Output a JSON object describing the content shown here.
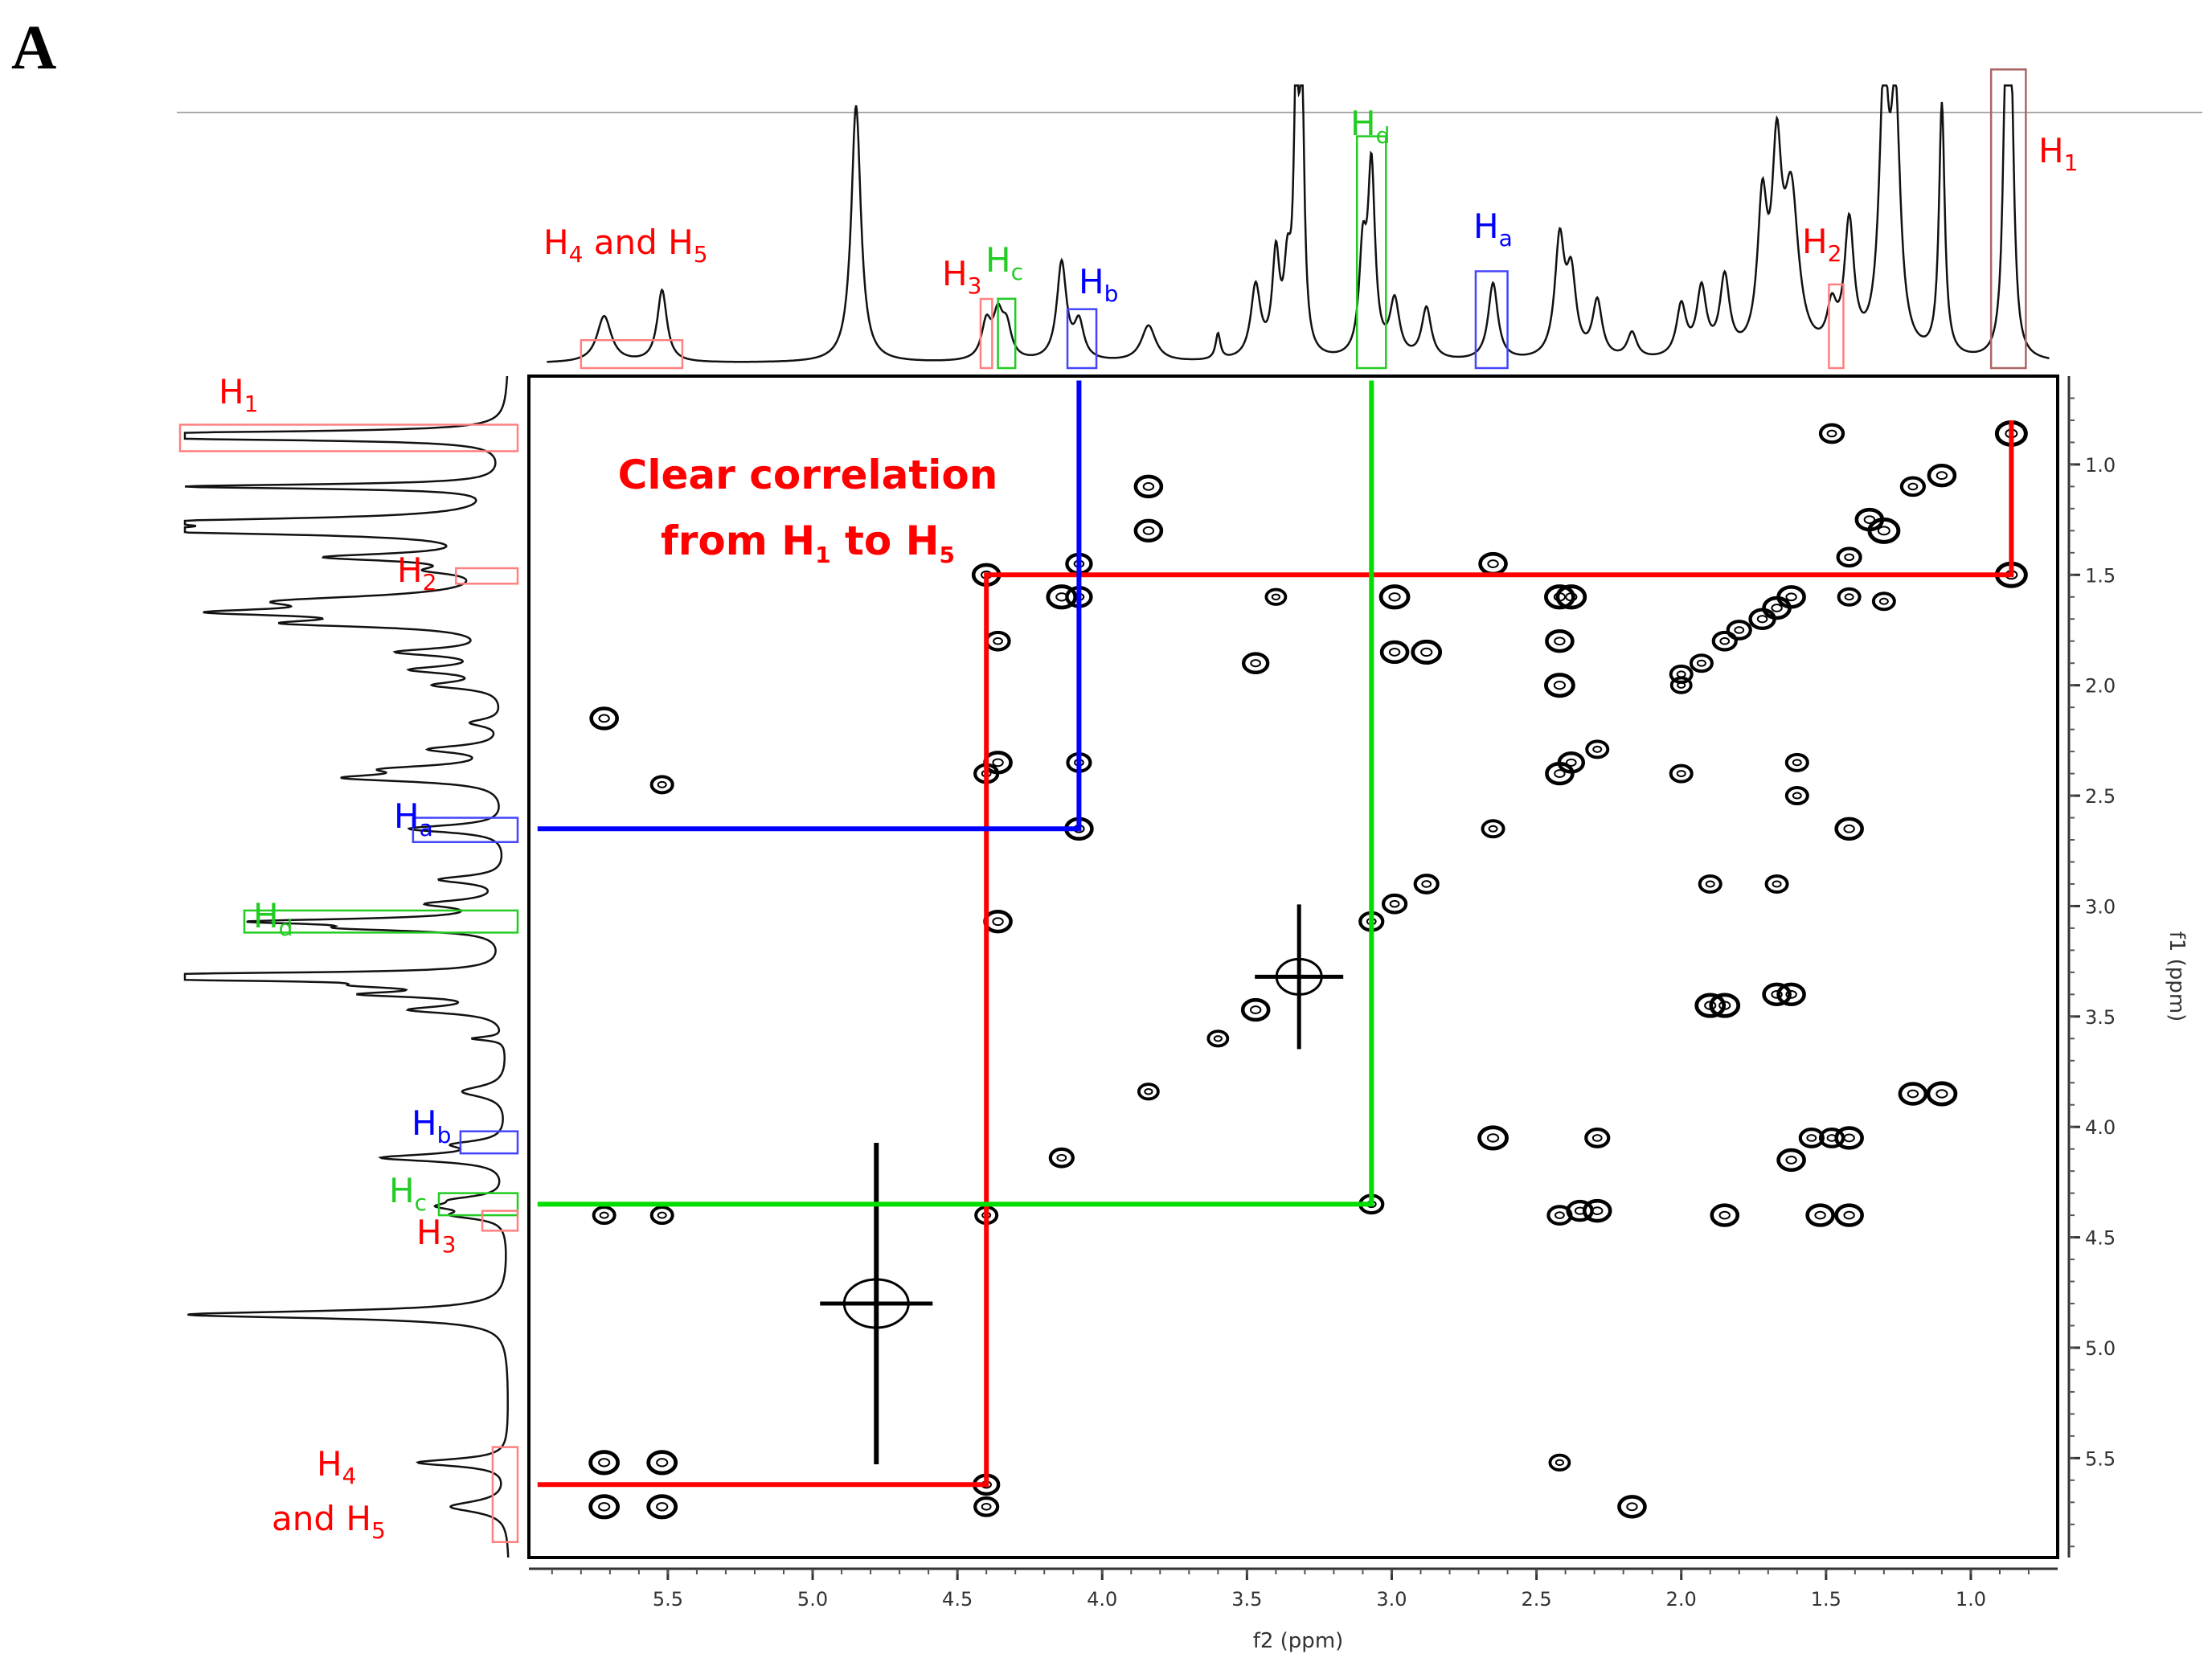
{
  "panel_label": "A",
  "chart_data": {
    "type": "2D-NMR-COSY",
    "xlabel": "f2 (ppm)",
    "ylabel": "f1 (ppm)",
    "xlim": [
      5.98,
      0.7
    ],
    "ylim": [
      0.6,
      5.95
    ],
    "x_ticks": [
      {
        "value": 5.5,
        "label": "5.5"
      },
      {
        "value": 5.0,
        "label": "5.0"
      },
      {
        "value": 4.5,
        "label": "4.5"
      },
      {
        "value": 4.0,
        "label": "4.0"
      },
      {
        "value": 3.5,
        "label": "3.5"
      },
      {
        "value": 3.0,
        "label": "3.0"
      },
      {
        "value": 2.5,
        "label": "2.5"
      },
      {
        "value": 2.0,
        "label": "2.0"
      },
      {
        "value": 1.5,
        "label": "1.5"
      },
      {
        "value": 1.0,
        "label": "1.0"
      }
    ],
    "y_ticks": [
      {
        "value": 1.0,
        "label": "1.0"
      },
      {
        "value": 1.5,
        "label": "1.5"
      },
      {
        "value": 2.0,
        "label": "2.0"
      },
      {
        "value": 2.5,
        "label": "2.5"
      },
      {
        "value": 3.0,
        "label": "3.0"
      },
      {
        "value": 3.5,
        "label": "3.5"
      },
      {
        "value": 4.0,
        "label": "4.0"
      },
      {
        "value": 4.5,
        "label": "4.5"
      },
      {
        "value": 5.0,
        "label": "5.0"
      },
      {
        "value": 5.5,
        "label": "5.5"
      }
    ],
    "projection_peaks": [
      {
        "ppm": 5.72,
        "h": 0.18,
        "w": 0.03
      },
      {
        "ppm": 5.52,
        "h": 0.28,
        "w": 0.02
      },
      {
        "ppm": 4.85,
        "h": 1.0,
        "w": 0.02
      },
      {
        "ppm": 4.4,
        "h": 0.14,
        "w": 0.02
      },
      {
        "ppm": 4.36,
        "h": 0.16,
        "w": 0.02
      },
      {
        "ppm": 4.33,
        "h": 0.12,
        "w": 0.02
      },
      {
        "ppm": 4.14,
        "h": 0.38,
        "w": 0.02
      },
      {
        "ppm": 4.08,
        "h": 0.14,
        "w": 0.02
      },
      {
        "ppm": 3.84,
        "h": 0.14,
        "w": 0.03
      },
      {
        "ppm": 3.6,
        "h": 0.1,
        "w": 0.01
      },
      {
        "ppm": 3.47,
        "h": 0.28,
        "w": 0.02
      },
      {
        "ppm": 3.4,
        "h": 0.38,
        "w": 0.015
      },
      {
        "ppm": 3.36,
        "h": 0.3,
        "w": 0.015
      },
      {
        "ppm": 3.33,
        "h": 0.98,
        "w": 0.01
      },
      {
        "ppm": 3.31,
        "h": 0.98,
        "w": 0.01
      },
      {
        "ppm": 3.1,
        "h": 0.38,
        "w": 0.015
      },
      {
        "ppm": 3.07,
        "h": 0.72,
        "w": 0.015
      },
      {
        "ppm": 2.99,
        "h": 0.22,
        "w": 0.02
      },
      {
        "ppm": 2.88,
        "h": 0.2,
        "w": 0.02
      },
      {
        "ppm": 2.65,
        "h": 0.3,
        "w": 0.02
      },
      {
        "ppm": 2.42,
        "h": 0.45,
        "w": 0.02
      },
      {
        "ppm": 2.38,
        "h": 0.3,
        "w": 0.02
      },
      {
        "ppm": 2.29,
        "h": 0.22,
        "w": 0.02
      },
      {
        "ppm": 2.17,
        "h": 0.1,
        "w": 0.02
      },
      {
        "ppm": 2.0,
        "h": 0.2,
        "w": 0.02
      },
      {
        "ppm": 1.93,
        "h": 0.26,
        "w": 0.02
      },
      {
        "ppm": 1.85,
        "h": 0.3,
        "w": 0.02
      },
      {
        "ppm": 1.72,
        "h": 0.55,
        "w": 0.02
      },
      {
        "ppm": 1.67,
        "h": 0.7,
        "w": 0.02
      },
      {
        "ppm": 1.62,
        "h": 0.6,
        "w": 0.03
      },
      {
        "ppm": 1.48,
        "h": 0.16,
        "w": 0.02
      },
      {
        "ppm": 1.42,
        "h": 0.5,
        "w": 0.02
      },
      {
        "ppm": 1.3,
        "h": 1.0,
        "w": 0.02
      },
      {
        "ppm": 1.26,
        "h": 0.9,
        "w": 0.02
      },
      {
        "ppm": 1.1,
        "h": 0.98,
        "w": 0.012
      },
      {
        "ppm": 0.88,
        "h": 0.95,
        "w": 0.012
      },
      {
        "ppm": 0.86,
        "h": 0.92,
        "w": 0.012
      }
    ],
    "cross_peaks": [
      [
        0.86,
        0.86,
        1
      ],
      [
        1.1,
        1.05,
        0.8
      ],
      [
        1.2,
        1.1,
        0.6
      ],
      [
        1.3,
        1.3,
        1
      ],
      [
        1.35,
        1.25,
        0.8
      ],
      [
        1.42,
        1.42,
        0.6
      ],
      [
        1.48,
        0.86,
        0.6
      ],
      [
        0.86,
        1.5,
        1
      ],
      [
        1.62,
        1.6,
        0.8
      ],
      [
        1.67,
        1.65,
        0.8
      ],
      [
        1.72,
        1.7,
        0.7
      ],
      [
        1.8,
        1.75,
        0.6
      ],
      [
        1.85,
        1.8,
        0.6
      ],
      [
        1.93,
        1.9,
        0.5
      ],
      [
        2.0,
        1.95,
        0.5
      ],
      [
        1.3,
        1.62,
        0.5
      ],
      [
        1.42,
        1.6,
        0.5
      ],
      [
        2.42,
        1.6,
        0.9
      ],
      [
        2.38,
        1.6,
        0.9
      ],
      [
        2.42,
        1.8,
        0.8
      ],
      [
        2.42,
        2.0,
        0.9
      ],
      [
        2.42,
        2.4,
        0.8
      ],
      [
        2.38,
        2.35,
        0.7
      ],
      [
        2.29,
        2.29,
        0.5
      ],
      [
        2.65,
        1.45,
        0.8
      ],
      [
        2.65,
        2.65,
        0.5
      ],
      [
        2.65,
        4.05,
        0.9
      ],
      [
        1.42,
        2.65,
        0.8
      ],
      [
        1.42,
        4.05,
        0.8
      ],
      [
        1.42,
        4.4,
        0.8
      ],
      [
        1.52,
        4.4,
        0.8
      ],
      [
        1.67,
        2.9,
        0.5
      ],
      [
        1.67,
        3.4,
        0.8
      ],
      [
        1.62,
        3.4,
        0.8
      ],
      [
        1.62,
        4.15,
        0.8
      ],
      [
        1.55,
        4.05,
        0.6
      ],
      [
        1.48,
        4.05,
        0.6
      ],
      [
        1.1,
        3.85,
        0.9
      ],
      [
        1.2,
        3.85,
        0.8
      ],
      [
        1.85,
        3.45,
        0.9
      ],
      [
        1.9,
        3.45,
        0.9
      ],
      [
        1.85,
        4.4,
        0.8
      ],
      [
        1.9,
        2.9,
        0.5
      ],
      [
        2.0,
        2.4,
        0.5
      ],
      [
        2.0,
        2.0,
        0.4
      ],
      [
        1.6,
        2.35,
        0.5
      ],
      [
        1.6,
        2.5,
        0.5
      ],
      [
        2.29,
        4.05,
        0.6
      ],
      [
        2.29,
        4.38,
        0.8
      ],
      [
        2.35,
        4.38,
        0.7
      ],
      [
        2.42,
        4.4,
        0.6
      ],
      [
        2.17,
        5.72,
        0.8
      ],
      [
        2.42,
        5.52,
        0.4
      ],
      [
        2.99,
        1.6,
        0.9
      ],
      [
        2.88,
        1.85,
        0.9
      ],
      [
        2.99,
        1.85,
        0.8
      ],
      [
        2.88,
        2.9,
        0.6
      ],
      [
        2.99,
        2.99,
        0.6
      ],
      [
        3.07,
        3.07,
        0.6
      ],
      [
        3.07,
        4.35,
        0.6
      ],
      [
        3.4,
        1.6,
        0.4
      ],
      [
        3.47,
        1.9,
        0.7
      ],
      [
        3.47,
        3.47,
        0.8
      ],
      [
        3.6,
        3.6,
        0.4
      ],
      [
        3.84,
        1.1,
        0.8
      ],
      [
        3.84,
        1.3,
        0.8
      ],
      [
        3.84,
        3.84,
        0.4
      ],
      [
        4.14,
        1.6,
        0.9
      ],
      [
        4.08,
        1.6,
        0.7
      ],
      [
        4.08,
        1.45,
        0.7
      ],
      [
        4.08,
        2.35,
        0.6
      ],
      [
        4.08,
        2.65,
        0.8
      ],
      [
        4.14,
        4.14,
        0.6
      ],
      [
        4.4,
        1.5,
        0.8
      ],
      [
        4.36,
        1.8,
        0.6
      ],
      [
        4.36,
        2.35,
        0.8
      ],
      [
        4.4,
        2.4,
        0.6
      ],
      [
        4.36,
        3.07,
        0.8
      ],
      [
        4.4,
        4.4,
        0.5
      ],
      [
        4.4,
        5.62,
        0.7
      ],
      [
        4.4,
        5.72,
        0.6
      ],
      [
        5.72,
        2.15,
        0.8
      ],
      [
        5.52,
        2.45,
        0.5
      ],
      [
        5.72,
        4.4,
        0.5
      ],
      [
        5.52,
        4.4,
        0.5
      ],
      [
        5.72,
        5.52,
        0.9
      ],
      [
        5.52,
        5.52,
        0.9
      ],
      [
        5.72,
        5.72,
        0.9
      ],
      [
        5.52,
        5.72,
        0.9
      ]
    ],
    "solvent_peaks": [
      {
        "x": 4.78,
        "y": 4.8,
        "label": ""
      },
      {
        "x": 3.32,
        "y": 3.32,
        "label": ""
      }
    ],
    "correlation_paths": [
      {
        "color": "#ff0000",
        "points": [
          [
            0.86,
            0.8
          ],
          [
            0.86,
            1.5
          ],
          [
            4.4,
            1.5
          ],
          [
            4.4,
            5.62
          ],
          [
            5.95,
            5.62
          ]
        ]
      },
      {
        "color": "#0000ff",
        "points": [
          [
            4.08,
            0.62
          ],
          [
            4.08,
            2.65
          ],
          [
            5.95,
            2.65
          ]
        ]
      },
      {
        "color": "#00dd00",
        "points": [
          [
            3.07,
            0.62
          ],
          [
            3.07,
            4.35
          ],
          [
            5.95,
            4.35
          ]
        ]
      }
    ],
    "highlights_top": [
      {
        "color": "#ff8080",
        "from": 5.8,
        "to": 5.45
      },
      {
        "color": "#ff8080",
        "from": 4.42,
        "to": 4.38
      },
      {
        "color": "#22cc22",
        "from": 4.36,
        "to": 4.3
      },
      {
        "color": "#4444ff",
        "from": 4.12,
        "to": 4.02
      },
      {
        "color": "#22cc22",
        "from": 3.12,
        "to": 3.02
      },
      {
        "color": "#4444ff",
        "from": 2.71,
        "to": 2.6
      },
      {
        "color": "#ff8080",
        "from": 1.49,
        "to": 1.44
      },
      {
        "color": "#aa6666",
        "from": 0.93,
        "to": 0.81
      }
    ],
    "highlights_left": [
      {
        "color": "#ff8080",
        "from": 0.82,
        "to": 0.94
      },
      {
        "color": "#ff8080",
        "from": 1.47,
        "to": 1.54
      },
      {
        "color": "#4444ff",
        "from": 2.6,
        "to": 2.71
      },
      {
        "color": "#22cc22",
        "from": 3.02,
        "to": 3.12
      },
      {
        "color": "#4444ff",
        "from": 4.02,
        "to": 4.12
      },
      {
        "color": "#22cc22",
        "from": 4.3,
        "to": 4.4
      },
      {
        "color": "#ff8080",
        "from": 4.38,
        "to": 4.47
      },
      {
        "color": "#ff8080",
        "from": 5.45,
        "to": 5.88
      }
    ]
  },
  "annotations": {
    "note_line1": "Clear correlation",
    "note_line2_pre": "from H",
    "note_line2_sub1": "1",
    "note_line2_mid": " to H",
    "note_line2_sub2": "5",
    "top": {
      "h4h5_a": "H",
      "h4h5_a_sub": "4",
      "h4h5_mid": " and H",
      "h4h5_b_sub": "5",
      "h3": "H",
      "h3_sub": "3",
      "hc": "H",
      "hc_sub": "c",
      "hb": "H",
      "hb_sub": "b",
      "hd": "H",
      "hd_sub": "d",
      "ha": "H",
      "ha_sub": "a",
      "h2": "H",
      "h2_sub": "2",
      "h1": "H",
      "h1_sub": "1"
    },
    "left": {
      "h1": "H",
      "h1_sub": "1",
      "h2": "H",
      "h2_sub": "2",
      "ha": "H",
      "ha_sub": "a",
      "hd": "H",
      "hd_sub": "d",
      "hb": "H",
      "hb_sub": "b",
      "hc": "H",
      "hc_sub": "c",
      "h3": "H",
      "h3_sub": "3",
      "h4_line1": "H",
      "h4_line1_sub": "4",
      "h4_line2": "and H",
      "h4_line2_sub": "5"
    }
  },
  "colors": {
    "red": "#ff0000",
    "blue": "#0000ff",
    "green": "#00cc00"
  }
}
